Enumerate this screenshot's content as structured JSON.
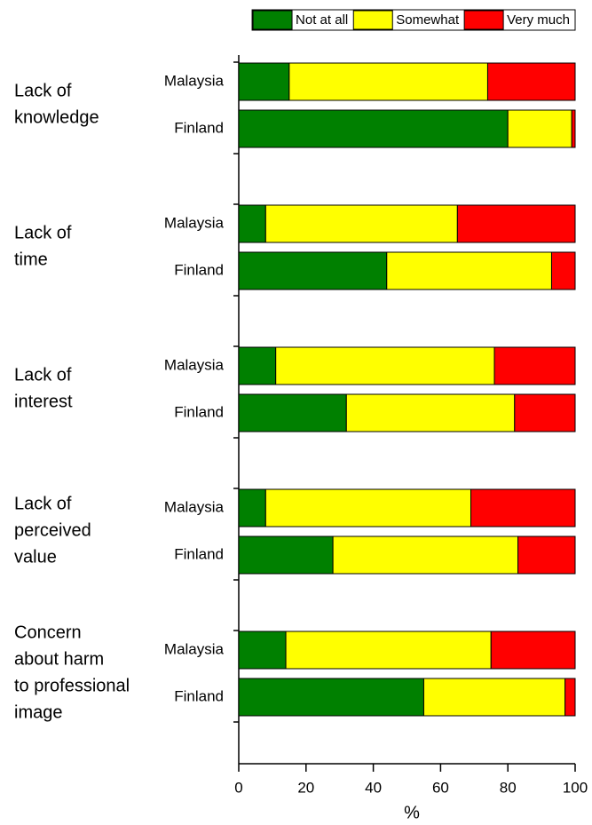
{
  "chart_data": {
    "type": "stacked_barh",
    "categories": [
      [
        "Lack of",
        "knowledge"
      ],
      [
        "Lack of",
        "time"
      ],
      [
        "Lack of",
        "interest"
      ],
      [
        "Lack of",
        "perceived",
        "value"
      ],
      [
        "Concern",
        "about harm",
        "to professional",
        "image"
      ]
    ],
    "subcategories": [
      "Malaysia",
      "Finland"
    ],
    "series": [
      {
        "name": "Not at all",
        "color": "#008000",
        "values": [
          [
            15,
            80
          ],
          [
            8,
            44
          ],
          [
            11,
            32
          ],
          [
            8,
            28
          ],
          [
            14,
            55
          ]
        ]
      },
      {
        "name": "Somewhat",
        "color": "#ffff00",
        "values": [
          [
            59,
            19
          ],
          [
            57,
            49
          ],
          [
            65,
            50
          ],
          [
            61,
            55
          ],
          [
            61,
            42
          ]
        ]
      },
      {
        "name": "Very much",
        "color": "#ff0000",
        "values": [
          [
            26,
            1
          ],
          [
            35,
            7
          ],
          [
            24,
            18
          ],
          [
            31,
            17
          ],
          [
            25,
            3
          ]
        ]
      }
    ],
    "xlabel": "%",
    "xlim": [
      0,
      100
    ],
    "xticks": [
      0,
      20,
      40,
      60,
      80,
      100
    ],
    "legend": "top-right"
  }
}
